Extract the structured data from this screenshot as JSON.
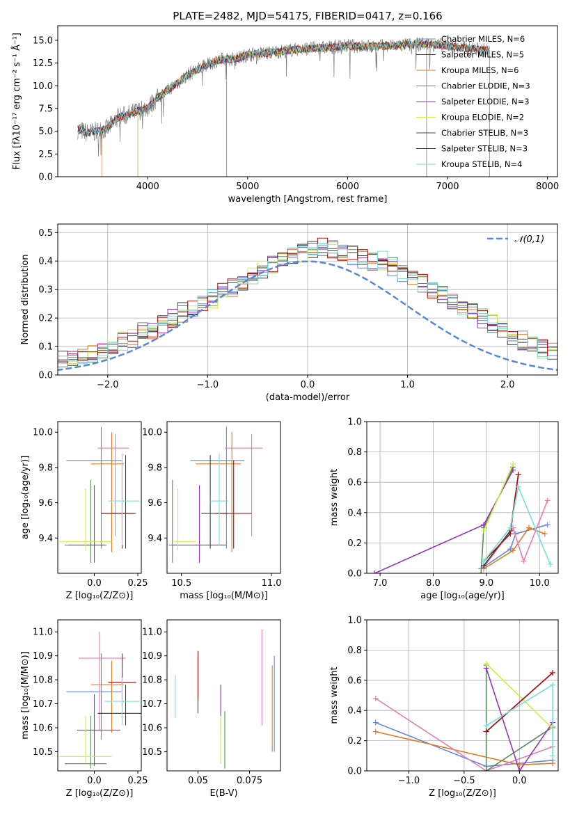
{
  "chart_data": [
    {
      "type": "line",
      "title": "PLATE=2482, MJD=54175, FIBERID=0417, z=0.166",
      "xlabel": "wavelength [Angstrom, rest frame]",
      "ylabel": "Flux [fλ10⁻¹⁷ erg cm⁻² s⁻¹ Å⁻¹]",
      "xlim": [
        3100,
        8100
      ],
      "ylim": [
        0,
        16.6
      ],
      "xticks": [
        4000,
        5000,
        6000,
        7000,
        8000
      ],
      "yticks": [
        0.0,
        2.5,
        5.0,
        7.5,
        10.0,
        12.5,
        15.0
      ],
      "grid": false,
      "legend": "right",
      "observed": {
        "color": "#808080",
        "x": [
          3300,
          3400,
          3500,
          3600,
          3700,
          3800,
          3900,
          4000,
          4100,
          4200,
          4300,
          4400,
          4500,
          4600,
          4700,
          4800,
          4900,
          5000,
          5200,
          5400,
          5600,
          5800,
          6000,
          6200,
          6400,
          6600,
          6800,
          7000,
          7200,
          7400
        ],
        "y": [
          5.2,
          4.8,
          5.0,
          5.3,
          6.5,
          6.8,
          7.2,
          7.6,
          8.7,
          9.5,
          10.3,
          11.2,
          11.8,
          12.3,
          12.8,
          12.9,
          13.0,
          13.4,
          13.6,
          13.9,
          14.1,
          14.2,
          14.4,
          14.3,
          14.4,
          14.5,
          14.6,
          14.4,
          14.1,
          13.9
        ]
      },
      "series": [
        {
          "name": "Chabrier MILES, N_SSP=6",
          "color": "#6688d6",
          "x0": 3300,
          "x1": 7420
        },
        {
          "name": "Salpeter MILES, N_SSP=5",
          "color": "#3a3a3a",
          "x0": 3300,
          "x1": 7420
        },
        {
          "name": "Kroupa MILES, N_SSP=6",
          "color": "#e07b20",
          "x0": 3540,
          "x1": 7420
        },
        {
          "name": "Chabrier ELODIE, N_SSP=3",
          "color": "#5b8a5b",
          "x0": 3900,
          "x1": 6800
        },
        {
          "name": "Salpeter ELODIE, N_SSP=3",
          "color": "#9933bb",
          "x0": 3900,
          "x1": 6800
        },
        {
          "name": "Kroupa ELODIE, N_SSP=2",
          "color": "#ccee44",
          "x0": 3900,
          "x1": 6800
        },
        {
          "name": "Chabrier STELIB, N_SSP=3",
          "color": "#444444",
          "x0": 3300,
          "x1": 7400
        },
        {
          "name": "Salpeter STELIB, N_SSP=3",
          "color": "#aa1111",
          "x0": 3300,
          "x1": 7400
        },
        {
          "name": "Kroupa STELIB, N_SSP=4",
          "color": "#77dddd",
          "x0": 3300,
          "x1": 7400
        }
      ]
    },
    {
      "type": "histogram",
      "xlabel": "(data-model)/error",
      "ylabel": "Normed distribution",
      "xlim": [
        -2.5,
        2.5
      ],
      "ylim": [
        0,
        0.53
      ],
      "xticks": [
        -2,
        -1,
        0,
        1,
        2
      ],
      "yticks": [
        0.0,
        0.1,
        0.2,
        0.3,
        0.4,
        0.5
      ],
      "grid": true,
      "legend": "top-right",
      "gaussian": {
        "label": "𝒩(0,1)",
        "color": "#5588dd"
      },
      "bin_width": 0.1,
      "base_counts": [
        0.02,
        0.03,
        0.03,
        0.04,
        0.04,
        0.05,
        0.06,
        0.07,
        0.08,
        0.09,
        0.1,
        0.12,
        0.13,
        0.15,
        0.16,
        0.18,
        0.2,
        0.22,
        0.24,
        0.26,
        0.27,
        0.29,
        0.31,
        0.33,
        0.35,
        0.37,
        0.39,
        0.41,
        0.42,
        0.43,
        0.44,
        0.45,
        0.44,
        0.43,
        0.42,
        0.41,
        0.4,
        0.4,
        0.38,
        0.36,
        0.34,
        0.32,
        0.3,
        0.28,
        0.26,
        0.24,
        0.22,
        0.2,
        0.18,
        0.16,
        0.14,
        0.12,
        0.11,
        0.09,
        0.08,
        0.07,
        0.06,
        0.05,
        0.04,
        0.03
      ]
    },
    {
      "type": "errorbar",
      "xlabel": "Z [log₁₀(Z/Z⊙)]",
      "ylabel": "age  [log₁₀(age/yr)]",
      "xlim": [
        -0.21,
        0.27
      ],
      "ylim": [
        9.2,
        10.06
      ],
      "xticks": [
        0.0,
        0.25
      ],
      "yticks": [
        9.4,
        9.6,
        9.8,
        10.0
      ],
      "points": [
        {
          "color": "#6688d6",
          "x": 0.04,
          "xe": [
            0.2,
            0.12
          ],
          "y": 9.84,
          "ye": [
            0.5,
            0.19
          ]
        },
        {
          "color": "#e07b20",
          "x": 0.1,
          "xe": [
            0.12,
            0.07
          ],
          "y": 9.82,
          "ye": [
            0.5,
            0.18
          ]
        },
        {
          "color": "#e87bb6",
          "x": 0.12,
          "xe": [
            0.1,
            0.08
          ],
          "y": 9.91,
          "ye": [
            0.5,
            0.08
          ]
        },
        {
          "color": "#5b8a5b",
          "x": -0.02,
          "xe": [
            0.15,
            0.09
          ],
          "y": 9.36,
          "ye": [
            0.1,
            0.37
          ]
        },
        {
          "color": "#9933bb",
          "x": 0.0,
          "xe": [
            0.15,
            0.06
          ],
          "y": 9.36,
          "ye": [
            0.1,
            0.34
          ]
        },
        {
          "color": "#ccee44",
          "x": -0.05,
          "xe": [
            0.15,
            0.15
          ],
          "y": 9.38,
          "ye": [
            0.05,
            0.3
          ]
        },
        {
          "color": "#3a3a3a",
          "x": 0.18,
          "xe": [
            0.14,
            0.05
          ],
          "y": 9.54,
          "ye": [
            0.2,
            0.33
          ]
        },
        {
          "color": "#aa1111",
          "x": 0.16,
          "xe": [
            0.12,
            0.08
          ],
          "y": 9.54,
          "ye": [
            0.2,
            0.3
          ]
        },
        {
          "color": "#77dddd",
          "x": 0.16,
          "xe": [
            0.08,
            0.1
          ],
          "y": 9.61,
          "ye": [
            0.25,
            0.27
          ]
        }
      ]
    },
    {
      "type": "errorbar",
      "xlabel": "mass [log₁₀(M/M⊙)]",
      "ylabel": "",
      "xlim": [
        10.42,
        11.05
      ],
      "ylim": [
        9.2,
        10.06
      ],
      "xticks": [
        10.5,
        11.0
      ],
      "yticks": [
        9.4,
        9.6,
        9.8,
        10.0
      ],
      "points": [
        {
          "color": "#6688d6",
          "x": 10.75,
          "xe": [
            0.2,
            0.1
          ],
          "y": 9.84,
          "ye": [
            0.5,
            0.19
          ]
        },
        {
          "color": "#e07b20",
          "x": 10.78,
          "xe": [
            0.2,
            0.05
          ],
          "y": 9.82,
          "ye": [
            0.5,
            0.18
          ]
        },
        {
          "color": "#e87bb6",
          "x": 10.89,
          "xe": [
            0.15,
            0.06
          ],
          "y": 9.91,
          "ye": [
            0.5,
            0.08
          ]
        },
        {
          "color": "#5b8a5b",
          "x": 10.45,
          "xe": [
            0.02,
            0.02
          ],
          "y": 9.36,
          "ye": [
            0.1,
            0.37
          ]
        },
        {
          "color": "#9933bb",
          "x": 10.6,
          "xe": [
            0.15,
            0.15
          ],
          "y": 9.36,
          "ye": [
            0.1,
            0.34
          ]
        },
        {
          "color": "#ccee44",
          "x": 10.48,
          "xe": [
            0.02,
            0.1
          ],
          "y": 9.38,
          "ye": [
            0.05,
            0.3
          ]
        },
        {
          "color": "#3a3a3a",
          "x": 10.66,
          "xe": [
            0.05,
            0.1
          ],
          "y": 9.54,
          "ye": [
            0.2,
            0.33
          ]
        },
        {
          "color": "#aa1111",
          "x": 10.79,
          "xe": [
            0.1,
            0.1
          ],
          "y": 9.54,
          "ye": [
            0.2,
            0.3
          ]
        },
        {
          "color": "#77dddd",
          "x": 10.71,
          "xe": [
            0.05,
            0.05
          ],
          "y": 9.61,
          "ye": [
            0.25,
            0.27
          ]
        }
      ]
    },
    {
      "type": "line",
      "xlabel": "age  [log₁₀(age/yr)]",
      "ylabel": "mass weight",
      "xlim": [
        6.75,
        10.35
      ],
      "ylim": [
        0,
        1
      ],
      "xticks": [
        7,
        8,
        9,
        10
      ],
      "yticks": [
        0.0,
        0.2,
        0.4,
        0.6,
        0.8,
        1.0
      ],
      "grid": true,
      "series": [
        {
          "color": "#6688d6",
          "x": [
            8.9,
            9.45,
            9.55,
            10.15
          ],
          "y": [
            0.03,
            0.16,
            0.26,
            0.32
          ]
        },
        {
          "color": "#e07b20",
          "x": [
            8.95,
            9.5,
            9.8,
            10.1
          ],
          "y": [
            0.03,
            0.15,
            0.3,
            0.26
          ]
        },
        {
          "color": "#e87bb6",
          "x": [
            8.95,
            9.5,
            9.7,
            10.15
          ],
          "y": [
            0.04,
            0.3,
            0.08,
            0.48
          ]
        },
        {
          "color": "#5b8a5b",
          "x": [
            8.9,
            8.95,
            9.5
          ],
          "y": [
            0.0,
            0.3,
            0.7
          ]
        },
        {
          "color": "#9933bb",
          "x": [
            6.9,
            8.95,
            9.5
          ],
          "y": [
            0.0,
            0.32,
            0.68
          ]
        },
        {
          "color": "#ccee44",
          "x": [
            8.95,
            9.5
          ],
          "y": [
            0.28,
            0.72
          ]
        },
        {
          "color": "#3a3a3a",
          "x": [
            8.95,
            9.45,
            9.6
          ],
          "y": [
            0.05,
            0.28,
            0.65
          ]
        },
        {
          "color": "#aa1111",
          "x": [
            8.95,
            9.45,
            9.6
          ],
          "y": [
            0.08,
            0.26,
            0.65
          ]
        },
        {
          "color": "#77dddd",
          "x": [
            8.95,
            9.45,
            9.6,
            10.2
          ],
          "y": [
            0.08,
            0.3,
            0.57,
            0.06
          ]
        }
      ]
    },
    {
      "type": "errorbar",
      "xlabel": "Z [log₁₀(Z/Z⊙)]",
      "ylabel": "mass [log₁₀(M/M⊙)]",
      "xlim": [
        -0.21,
        0.27
      ],
      "ylim": [
        10.42,
        11.05
      ],
      "xticks": [
        0.0,
        0.25
      ],
      "yticks": [
        10.5,
        10.6,
        10.7,
        10.8,
        10.9,
        11.0
      ],
      "points": [
        {
          "color": "#6688d6",
          "x": 0.04,
          "xe": [
            0.2,
            0.12
          ],
          "y": 10.75,
          "ye": [
            0.2,
            0.16
          ]
        },
        {
          "color": "#e07b20",
          "x": 0.1,
          "xe": [
            0.12,
            0.07
          ],
          "y": 10.78,
          "ye": [
            0.2,
            0.1
          ]
        },
        {
          "color": "#e87bb6",
          "x": 0.03,
          "xe": [
            0.12,
            0.15
          ],
          "y": 10.89,
          "ye": [
            0.3,
            0.11
          ]
        },
        {
          "color": "#5b8a5b",
          "x": -0.02,
          "xe": [
            0.15,
            0.09
          ],
          "y": 10.45,
          "ye": [
            0.02,
            0.2
          ]
        },
        {
          "color": "#9933bb",
          "x": 0.0,
          "xe": [
            0.1,
            0.15
          ],
          "y": 10.59,
          "ye": [
            0.15,
            0.15
          ]
        },
        {
          "color": "#ccee44",
          "x": -0.05,
          "xe": [
            0.15,
            0.15
          ],
          "y": 10.48,
          "ye": [
            0.03,
            0.17
          ]
        },
        {
          "color": "#3a3a3a",
          "x": 0.18,
          "xe": [
            0.16,
            0.1
          ],
          "y": 10.66,
          "ye": [
            0.05,
            0.12
          ]
        },
        {
          "color": "#aa1111",
          "x": 0.16,
          "xe": [
            0.08,
            0.08
          ],
          "y": 10.79,
          "ye": [
            0.1,
            0.12
          ]
        },
        {
          "color": "#77dddd",
          "x": 0.16,
          "xe": [
            0.1,
            0.1
          ],
          "y": 10.71,
          "ye": [
            0.1,
            0.1
          ]
        }
      ]
    },
    {
      "type": "errorbar",
      "xlabel": "E(B-V)",
      "ylabel": "",
      "xlim": [
        0.035,
        0.09
      ],
      "ylim": [
        10.42,
        11.05
      ],
      "xticks": [
        0.05,
        0.075
      ],
      "yticks": [
        10.5,
        10.6,
        10.7,
        10.8,
        10.9,
        11.0
      ],
      "points": [
        {
          "color": "#6688d6",
          "x": 0.087,
          "xe": [
            0,
            0
          ],
          "y": 10.7,
          "ye": [
            0.2,
            0.2
          ]
        },
        {
          "color": "#e07b20",
          "x": 0.086,
          "xe": [
            0,
            0
          ],
          "y": 10.68,
          "ye": [
            0.18,
            0.18
          ]
        },
        {
          "color": "#e87bb6",
          "x": 0.081,
          "xe": [
            0,
            0
          ],
          "y": 10.81,
          "ye": [
            0.2,
            0.2
          ]
        },
        {
          "color": "#5b8a5b",
          "x": 0.063,
          "xe": [
            0,
            0
          ],
          "y": 10.55,
          "ye": [
            0.12,
            0.12
          ]
        },
        {
          "color": "#9933bb",
          "x": 0.061,
          "xe": [
            0,
            0
          ],
          "y": 10.68,
          "ye": [
            0.1,
            0.1
          ]
        },
        {
          "color": "#ccee44",
          "x": 0.061,
          "xe": [
            0,
            0
          ],
          "y": 10.55,
          "ye": [
            0.1,
            0.1
          ]
        },
        {
          "color": "#3a3a3a",
          "x": 0.05,
          "xe": [
            0,
            0
          ],
          "y": 10.78,
          "ye": [
            0.12,
            0.12
          ]
        },
        {
          "color": "#aa1111",
          "x": 0.05,
          "xe": [
            0,
            0
          ],
          "y": 10.82,
          "ye": [
            0.1,
            0.1
          ]
        },
        {
          "color": "#77dddd",
          "x": 0.039,
          "xe": [
            0,
            0
          ],
          "y": 10.73,
          "ye": [
            0.09,
            0.09
          ]
        }
      ]
    },
    {
      "type": "line",
      "xlabel": "Z [log₁₀(Z/Z⊙)]",
      "ylabel": "mass weight",
      "xlim": [
        -1.38,
        0.35
      ],
      "ylim": [
        0,
        1
      ],
      "xticks": [
        -1.0,
        -0.5,
        0.0
      ],
      "yticks": [
        0.0,
        0.2,
        0.4,
        0.6,
        0.8,
        1.0
      ],
      "grid": true,
      "series": [
        {
          "color": "#6688d6",
          "x": [
            -1.3,
            -0.3,
            0.3
          ],
          "y": [
            0.32,
            0.03,
            0.07
          ]
        },
        {
          "color": "#e07b20",
          "x": [
            -1.3,
            0.0,
            0.3
          ],
          "y": [
            0.26,
            0.04,
            0.05
          ]
        },
        {
          "color": "#e87bb6",
          "x": [
            -1.3,
            -0.3,
            0.3
          ],
          "y": [
            0.48,
            0.0,
            0.16
          ]
        },
        {
          "color": "#5b8a5b",
          "x": [
            -0.3,
            -0.3,
            0.3
          ],
          "y": [
            0.7,
            0.0,
            0.29
          ]
        },
        {
          "color": "#9933bb",
          "x": [
            -0.3,
            0.0,
            0.3
          ],
          "y": [
            0.68,
            0.0,
            0.32
          ]
        },
        {
          "color": "#ccee44",
          "x": [
            -0.3,
            0.3
          ],
          "y": [
            0.71,
            0.28
          ]
        },
        {
          "color": "#3a3a3a",
          "x": [
            -0.3,
            0.3
          ],
          "y": [
            0.26,
            0.65
          ]
        },
        {
          "color": "#aa1111",
          "x": [
            -0.3,
            0.3
          ],
          "y": [
            0.26,
            0.65
          ]
        },
        {
          "color": "#77dddd",
          "x": [
            -0.3,
            0.3,
            0.3
          ],
          "y": [
            0.3,
            0.57,
            0.1
          ]
        }
      ]
    }
  ]
}
